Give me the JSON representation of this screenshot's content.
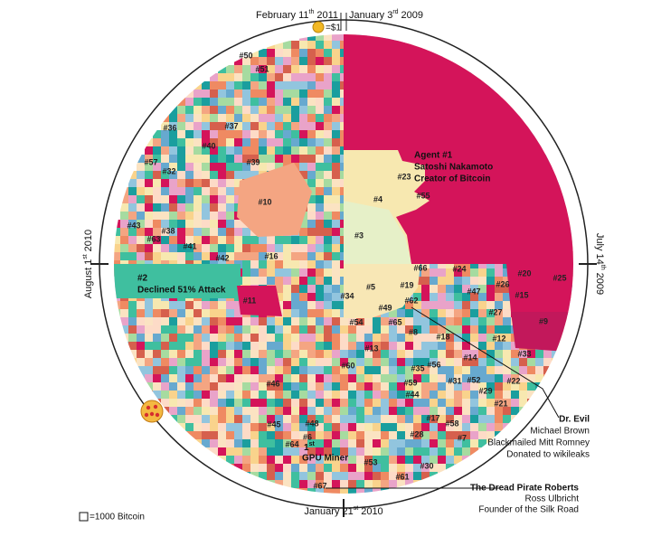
{
  "dates": [
    {
      "text": "February 11",
      "sup": "th",
      "year": "2011"
    },
    {
      "text": "January 3",
      "sup": "rd",
      "year": "2009"
    },
    {
      "text": "July 14",
      "sup": "th",
      "year": "2009"
    },
    {
      "text": "January 21",
      "sup": "st",
      "year": "2010"
    },
    {
      "text": "August 1",
      "sup": "st",
      "year": "2010"
    }
  ],
  "coin_label": "=$1",
  "legend_label": "=1000 Bitcoin",
  "agent1": [
    "Agent #1",
    "Satoshi Nakamoto",
    "Creator of Bitcoin"
  ],
  "agent2": [
    "#2",
    "Declined 51% Attack"
  ],
  "gpu_miner": {
    "num": "1",
    "sup": "st",
    "text": "GPU Miner"
  },
  "dr_evil": [
    "Dr. Evil",
    "Michael Brown",
    "Blackmailed Mitt Romney",
    "Donated to wikileaks"
  ],
  "dread_pirate": [
    "The Dread Pirate Roberts",
    "Ross Ulbricht",
    "Founder of the Silk Road"
  ],
  "labels": [
    "#50",
    "#51",
    "#37",
    "#36",
    "#40",
    "#57",
    "#39",
    "#32",
    "#23",
    "#55",
    "#4",
    "#10",
    "#43",
    "#38",
    "#63",
    "#3",
    "#41",
    "#42",
    "#16",
    "#66",
    "#24",
    "#20",
    "#25",
    "#5",
    "#19",
    "#26",
    "#47",
    "#15",
    "#11",
    "#34",
    "#62",
    "#27",
    "#49",
    "#54",
    "#65",
    "#9",
    "#8",
    "#18",
    "#12",
    "#13",
    "#33",
    "#14",
    "#60",
    "#56",
    "#35",
    "#22",
    "#31",
    "#52",
    "#29",
    "#46",
    "#59",
    "#44",
    "#21",
    "#48",
    "#45",
    "#17",
    "#58",
    "#6",
    "#28",
    "#7",
    "#64",
    "#53",
    "#30",
    "#61",
    "#67"
  ]
}
